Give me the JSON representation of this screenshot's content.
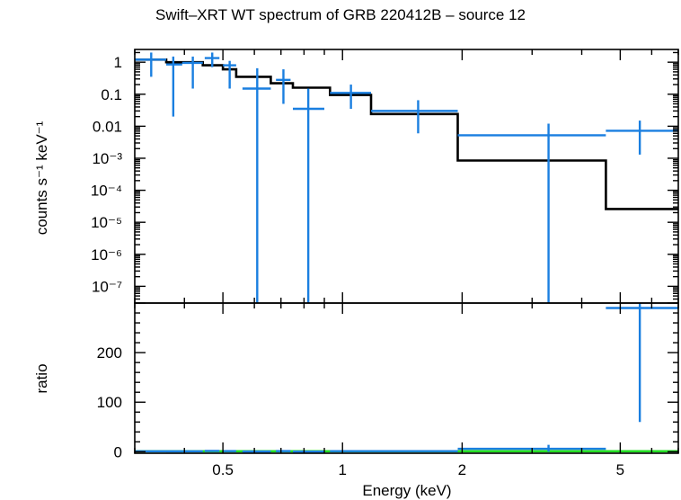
{
  "chart_data": [
    {
      "type": "line",
      "panel": "spectrum",
      "title": "Swift–XRT WT spectrum of GRB 220412B – source 12",
      "ylabel": "counts s⁻¹ keV⁻¹",
      "xlabel": "",
      "x_scale": "log",
      "y_scale": "log",
      "xlim": [
        0.3,
        7.0
      ],
      "ylim": [
        3e-08,
        2.5
      ],
      "y_ticks": [
        {
          "v": 1,
          "label": "1"
        },
        {
          "v": 0.1,
          "label": "0.1"
        },
        {
          "v": 0.01,
          "label": "0.01"
        },
        {
          "v": 0.001,
          "label": "10⁻³"
        },
        {
          "v": 0.0001,
          "label": "10⁻⁴"
        },
        {
          "v": 1e-05,
          "label": "10⁻⁵"
        },
        {
          "v": 1e-06,
          "label": "10⁻⁶"
        },
        {
          "v": 1e-07,
          "label": "10⁻⁷"
        }
      ],
      "series": [
        {
          "kind": "data",
          "color": "#1a7fe0",
          "points": [
            {
              "x": 0.33,
              "xlo": 0.3,
              "xhi": 0.36,
              "y": 1.2,
              "ylo": 0.35,
              "yhi": 2.0
            },
            {
              "x": 0.375,
              "xlo": 0.36,
              "xhi": 0.395,
              "y": 0.85,
              "ylo": 0.02,
              "yhi": 1.5
            },
            {
              "x": 0.42,
              "xlo": 0.395,
              "xhi": 0.445,
              "y": 0.95,
              "ylo": 0.15,
              "yhi": 1.5
            },
            {
              "x": 0.47,
              "xlo": 0.45,
              "xhi": 0.49,
              "y": 1.35,
              "ylo": 0.7,
              "yhi": 2.0
            },
            {
              "x": 0.52,
              "xlo": 0.5,
              "xhi": 0.54,
              "y": 0.8,
              "ylo": 0.15,
              "yhi": 1.1
            },
            {
              "x": 0.61,
              "xlo": 0.56,
              "xhi": 0.66,
              "y": 0.15,
              "ylo": 1e-09,
              "yhi": 0.65
            },
            {
              "x": 0.71,
              "xlo": 0.68,
              "xhi": 0.74,
              "y": 0.28,
              "ylo": 0.05,
              "yhi": 0.6
            },
            {
              "x": 0.82,
              "xlo": 0.75,
              "xhi": 0.9,
              "y": 0.035,
              "ylo": 1e-09,
              "yhi": 0.15
            },
            {
              "x": 1.05,
              "xlo": 0.93,
              "xhi": 1.18,
              "y": 0.11,
              "ylo": 0.035,
              "yhi": 0.2
            },
            {
              "x": 1.55,
              "xlo": 1.18,
              "xhi": 1.95,
              "y": 0.03,
              "ylo": 0.006,
              "yhi": 0.065
            },
            {
              "x": 3.3,
              "xlo": 1.95,
              "xhi": 4.6,
              "y": 0.0052,
              "ylo": 1e-09,
              "yhi": 0.012
            },
            {
              "x": 5.6,
              "xlo": 4.6,
              "xhi": 7.0,
              "y": 0.0072,
              "ylo": 0.0013,
              "yhi": 0.015
            }
          ]
        },
        {
          "kind": "model",
          "color": "#000000",
          "steps": [
            {
              "x0": 0.3,
              "x1": 0.36,
              "y": 1.2
            },
            {
              "x0": 0.36,
              "x1": 0.445,
              "y": 1.0
            },
            {
              "x0": 0.445,
              "x1": 0.5,
              "y": 0.8
            },
            {
              "x0": 0.5,
              "x1": 0.54,
              "y": 0.6
            },
            {
              "x0": 0.54,
              "x1": 0.66,
              "y": 0.35
            },
            {
              "x0": 0.66,
              "x1": 0.75,
              "y": 0.22
            },
            {
              "x0": 0.75,
              "x1": 0.93,
              "y": 0.16
            },
            {
              "x0": 0.93,
              "x1": 1.18,
              "y": 0.095
            },
            {
              "x0": 1.18,
              "x1": 1.95,
              "y": 0.024
            },
            {
              "x0": 1.95,
              "x1": 4.6,
              "y": 0.00085
            },
            {
              "x0": 4.6,
              "x1": 7.0,
              "y": 2.6e-05
            }
          ]
        }
      ]
    },
    {
      "type": "scatter",
      "panel": "ratio",
      "title": "",
      "ylabel": "ratio",
      "xlabel": "Energy (keV)",
      "x_scale": "log",
      "y_scale": "linear",
      "xlim": [
        0.3,
        7.0
      ],
      "ylim": [
        -3,
        300
      ],
      "x_ticks": [
        {
          "v": 0.5,
          "label": "0.5"
        },
        {
          "v": 1,
          "label": "1"
        },
        {
          "v": 2,
          "label": "2"
        },
        {
          "v": 5,
          "label": "5"
        }
      ],
      "y_ticks": [
        {
          "v": 0,
          "label": "0"
        },
        {
          "v": 100,
          "label": "100"
        },
        {
          "v": 200,
          "label": "200"
        }
      ],
      "reference_line": {
        "y": 1,
        "color": "#22dd22"
      },
      "series": [
        {
          "kind": "data",
          "color": "#1a7fe0",
          "points": [
            {
              "x": 0.33,
              "xlo": 0.3,
              "xhi": 0.36,
              "y": 1.0,
              "ylo": 0.3,
              "yhi": 1.7
            },
            {
              "x": 0.375,
              "xlo": 0.36,
              "xhi": 0.395,
              "y": 0.85,
              "ylo": 0.1,
              "yhi": 1.5
            },
            {
              "x": 0.42,
              "xlo": 0.395,
              "xhi": 0.445,
              "y": 0.95,
              "ylo": 0.2,
              "yhi": 1.6
            },
            {
              "x": 0.47,
              "xlo": 0.45,
              "xhi": 0.49,
              "y": 1.7,
              "ylo": 0.9,
              "yhi": 2.5
            },
            {
              "x": 0.52,
              "xlo": 0.5,
              "xhi": 0.54,
              "y": 1.3,
              "ylo": 0.3,
              "yhi": 2.0
            },
            {
              "x": 0.61,
              "xlo": 0.56,
              "xhi": 0.66,
              "y": 0.4,
              "ylo": 0.0,
              "yhi": 1.8
            },
            {
              "x": 0.71,
              "xlo": 0.68,
              "xhi": 0.74,
              "y": 1.3,
              "ylo": 0.2,
              "yhi": 2.7
            },
            {
              "x": 0.82,
              "xlo": 0.75,
              "xhi": 0.9,
              "y": 0.2,
              "ylo": 0.0,
              "yhi": 0.9
            },
            {
              "x": 1.05,
              "xlo": 0.93,
              "xhi": 1.18,
              "y": 1.2,
              "ylo": 0.4,
              "yhi": 2.1
            },
            {
              "x": 1.55,
              "xlo": 1.18,
              "xhi": 1.95,
              "y": 1.25,
              "ylo": 0.25,
              "yhi": 2.7
            },
            {
              "x": 3.3,
              "xlo": 1.95,
              "xhi": 4.6,
              "y": 6,
              "ylo": 0,
              "yhi": 14
            },
            {
              "x": 5.6,
              "xlo": 4.6,
              "xhi": 7.0,
              "y": 290,
              "ylo": 60,
              "yhi": 300
            }
          ]
        }
      ]
    }
  ]
}
